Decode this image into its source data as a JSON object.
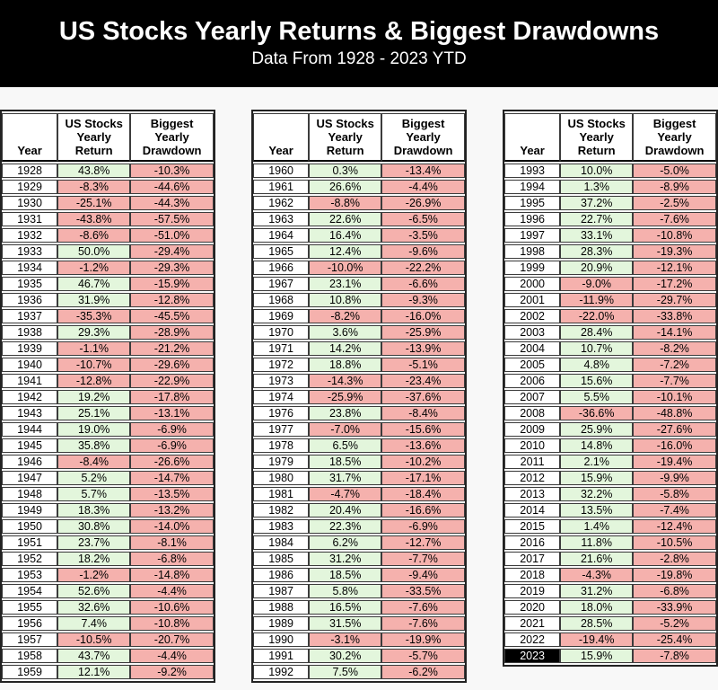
{
  "title": "US Stocks Yearly Returns & Biggest Drawdowns",
  "subtitle": "Data From 1928 - 2023 YTD",
  "colors": {
    "banner_bg": "#000000",
    "banner_text": "#ffffff",
    "positive_cell": "#e3f6dc",
    "negative_cell": "#f5b1ad",
    "year_cell": "#ffffff",
    "highlight_year_bg": "#000000",
    "highlight_year_text": "#ffffff",
    "border": "#3c3c3c"
  },
  "chart_data": {
    "type": "table",
    "title": "US Stocks Yearly Returns & Biggest Drawdowns",
    "subtitle": "Data From 1928 - 2023 YTD",
    "column_headers": {
      "year": "Year",
      "return": "US Stocks\nYearly\nReturn",
      "drawdown": "Biggest\nYearly\nDrawdown"
    },
    "highlight_year": "2023",
    "tables": [
      {
        "name": "1928-1959",
        "rows": [
          [
            "1928",
            "43.8%",
            "-10.3%"
          ],
          [
            "1929",
            "-8.3%",
            "-44.6%"
          ],
          [
            "1930",
            "-25.1%",
            "-44.3%"
          ],
          [
            "1931",
            "-43.8%",
            "-57.5%"
          ],
          [
            "1932",
            "-8.6%",
            "-51.0%"
          ],
          [
            "1933",
            "50.0%",
            "-29.4%"
          ],
          [
            "1934",
            "-1.2%",
            "-29.3%"
          ],
          [
            "1935",
            "46.7%",
            "-15.9%"
          ],
          [
            "1936",
            "31.9%",
            "-12.8%"
          ],
          [
            "1937",
            "-35.3%",
            "-45.5%"
          ],
          [
            "1938",
            "29.3%",
            "-28.9%"
          ],
          [
            "1939",
            "-1.1%",
            "-21.2%"
          ],
          [
            "1940",
            "-10.7%",
            "-29.6%"
          ],
          [
            "1941",
            "-12.8%",
            "-22.9%"
          ],
          [
            "1942",
            "19.2%",
            "-17.8%"
          ],
          [
            "1943",
            "25.1%",
            "-13.1%"
          ],
          [
            "1944",
            "19.0%",
            "-6.9%"
          ],
          [
            "1945",
            "35.8%",
            "-6.9%"
          ],
          [
            "1946",
            "-8.4%",
            "-26.6%"
          ],
          [
            "1947",
            "5.2%",
            "-14.7%"
          ],
          [
            "1948",
            "5.7%",
            "-13.5%"
          ],
          [
            "1949",
            "18.3%",
            "-13.2%"
          ],
          [
            "1950",
            "30.8%",
            "-14.0%"
          ],
          [
            "1951",
            "23.7%",
            "-8.1%"
          ],
          [
            "1952",
            "18.2%",
            "-6.8%"
          ],
          [
            "1953",
            "-1.2%",
            "-14.8%"
          ],
          [
            "1954",
            "52.6%",
            "-4.4%"
          ],
          [
            "1955",
            "32.6%",
            "-10.6%"
          ],
          [
            "1956",
            "7.4%",
            "-10.8%"
          ],
          [
            "1957",
            "-10.5%",
            "-20.7%"
          ],
          [
            "1958",
            "43.7%",
            "-4.4%"
          ],
          [
            "1959",
            "12.1%",
            "-9.2%"
          ]
        ]
      },
      {
        "name": "1960-1992",
        "rows": [
          [
            "1960",
            "0.3%",
            "-13.4%"
          ],
          [
            "1961",
            "26.6%",
            "-4.4%"
          ],
          [
            "1962",
            "-8.8%",
            "-26.9%"
          ],
          [
            "1963",
            "22.6%",
            "-6.5%"
          ],
          [
            "1964",
            "16.4%",
            "-3.5%"
          ],
          [
            "1965",
            "12.4%",
            "-9.6%"
          ],
          [
            "1966",
            "-10.0%",
            "-22.2%"
          ],
          [
            "1967",
            "23.1%",
            "-6.6%"
          ],
          [
            "1968",
            "10.8%",
            "-9.3%"
          ],
          [
            "1969",
            "-8.2%",
            "-16.0%"
          ],
          [
            "1970",
            "3.6%",
            "-25.9%"
          ],
          [
            "1971",
            "14.2%",
            "-13.9%"
          ],
          [
            "1972",
            "18.8%",
            "-5.1%"
          ],
          [
            "1973",
            "-14.3%",
            "-23.4%"
          ],
          [
            "1974",
            "-25.9%",
            "-37.6%"
          ],
          [
            "1976",
            "23.8%",
            "-8.4%"
          ],
          [
            "1977",
            "-7.0%",
            "-15.6%"
          ],
          [
            "1978",
            "6.5%",
            "-13.6%"
          ],
          [
            "1979",
            "18.5%",
            "-10.2%"
          ],
          [
            "1980",
            "31.7%",
            "-17.1%"
          ],
          [
            "1981",
            "-4.7%",
            "-18.4%"
          ],
          [
            "1982",
            "20.4%",
            "-16.6%"
          ],
          [
            "1983",
            "22.3%",
            "-6.9%"
          ],
          [
            "1984",
            "6.2%",
            "-12.7%"
          ],
          [
            "1985",
            "31.2%",
            "-7.7%"
          ],
          [
            "1986",
            "18.5%",
            "-9.4%"
          ],
          [
            "1987",
            "5.8%",
            "-33.5%"
          ],
          [
            "1988",
            "16.5%",
            "-7.6%"
          ],
          [
            "1989",
            "31.5%",
            "-7.6%"
          ],
          [
            "1990",
            "-3.1%",
            "-19.9%"
          ],
          [
            "1991",
            "30.2%",
            "-5.7%"
          ],
          [
            "1992",
            "7.5%",
            "-6.2%"
          ]
        ]
      },
      {
        "name": "1993-2023",
        "rows": [
          [
            "1993",
            "10.0%",
            "-5.0%"
          ],
          [
            "1994",
            "1.3%",
            "-8.9%"
          ],
          [
            "1995",
            "37.2%",
            "-2.5%"
          ],
          [
            "1996",
            "22.7%",
            "-7.6%"
          ],
          [
            "1997",
            "33.1%",
            "-10.8%"
          ],
          [
            "1998",
            "28.3%",
            "-19.3%"
          ],
          [
            "1999",
            "20.9%",
            "-12.1%"
          ],
          [
            "2000",
            "-9.0%",
            "-17.2%"
          ],
          [
            "2001",
            "-11.9%",
            "-29.7%"
          ],
          [
            "2002",
            "-22.0%",
            "-33.8%"
          ],
          [
            "2003",
            "28.4%",
            "-14.1%"
          ],
          [
            "2004",
            "10.7%",
            "-8.2%"
          ],
          [
            "2005",
            "4.8%",
            "-7.2%"
          ],
          [
            "2006",
            "15.6%",
            "-7.7%"
          ],
          [
            "2007",
            "5.5%",
            "-10.1%"
          ],
          [
            "2008",
            "-36.6%",
            "-48.8%"
          ],
          [
            "2009",
            "25.9%",
            "-27.6%"
          ],
          [
            "2010",
            "14.8%",
            "-16.0%"
          ],
          [
            "2011",
            "2.1%",
            "-19.4%"
          ],
          [
            "2012",
            "15.9%",
            "-9.9%"
          ],
          [
            "2013",
            "32.2%",
            "-5.8%"
          ],
          [
            "2014",
            "13.5%",
            "-7.4%"
          ],
          [
            "2015",
            "1.4%",
            "-12.4%"
          ],
          [
            "2016",
            "11.8%",
            "-10.5%"
          ],
          [
            "2017",
            "21.6%",
            "-2.8%"
          ],
          [
            "2018",
            "-4.3%",
            "-19.8%"
          ],
          [
            "2019",
            "31.2%",
            "-6.8%"
          ],
          [
            "2020",
            "18.0%",
            "-33.9%"
          ],
          [
            "2021",
            "28.5%",
            "-5.2%"
          ],
          [
            "2022",
            "-19.4%",
            "-25.4%"
          ],
          [
            "2023",
            "15.9%",
            "-7.8%"
          ]
        ]
      }
    ]
  }
}
